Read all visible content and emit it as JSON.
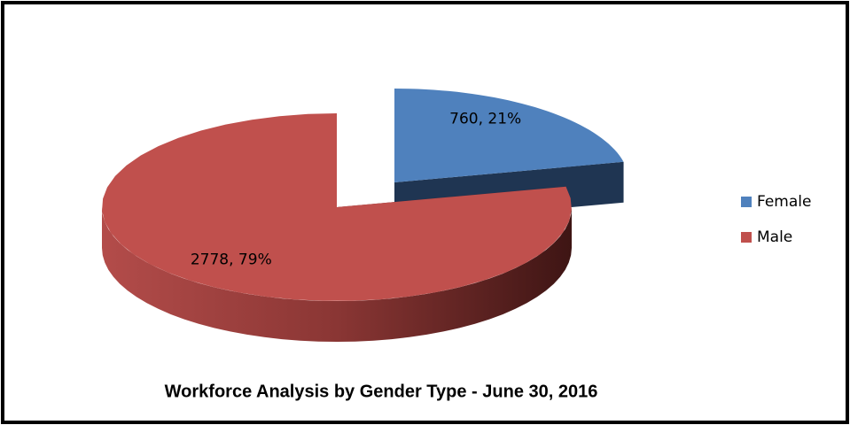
{
  "chart_data": {
    "type": "pie3d",
    "title": "Workforce Analysis by Gender Type - June 30, 2016",
    "categories": [
      "Female",
      "Male"
    ],
    "values": [
      760,
      2778
    ],
    "value_labels": [
      "760, 21%",
      "2778, 79%"
    ],
    "colors": [
      "#4f81bd",
      "#c0504d"
    ]
  }
}
